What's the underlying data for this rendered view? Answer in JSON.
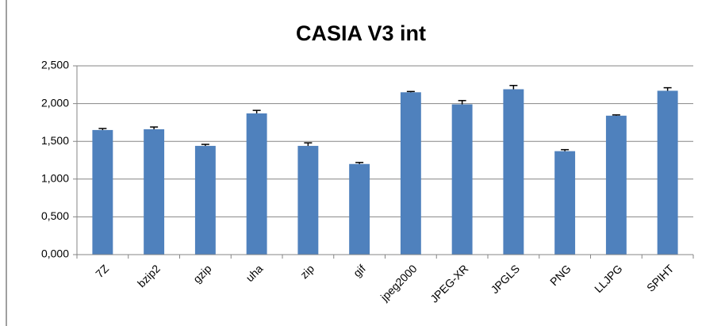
{
  "chart_data": {
    "type": "bar",
    "title": "CASIA V3 int",
    "categories": [
      "7Z",
      "bzip2",
      "gzip",
      "uha",
      "zip",
      "gif",
      "jpeg2000",
      "JPEG-XR",
      "JPGLS",
      "PNG",
      "LLJPG",
      "SPIHT"
    ],
    "values": [
      1.65,
      1.66,
      1.44,
      1.87,
      1.44,
      1.2,
      2.15,
      1.99,
      2.19,
      1.37,
      1.84,
      2.17
    ],
    "errors": [
      0.02,
      0.03,
      0.02,
      0.04,
      0.04,
      0.02,
      0.01,
      0.05,
      0.05,
      0.02,
      0.01,
      0.04
    ],
    "color": "#4f81bd",
    "ylim": [
      0,
      2.5
    ],
    "yticks": [
      {
        "value": 0,
        "label": "0,000"
      },
      {
        "value": 0.5,
        "label": "0,500"
      },
      {
        "value": 1,
        "label": "1,000"
      },
      {
        "value": 1.5,
        "label": "1,500"
      },
      {
        "value": 2,
        "label": "2,000"
      },
      {
        "value": 2.5,
        "label": "2,500"
      }
    ],
    "grid": true
  }
}
